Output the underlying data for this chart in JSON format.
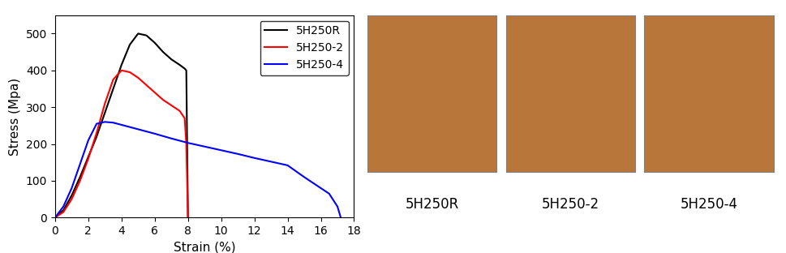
{
  "title": "",
  "xlabel": "Strain (%)",
  "ylabel": "Stress (Mpa)",
  "xlim": [
    0,
    18
  ],
  "ylim": [
    0,
    550
  ],
  "xticks": [
    0,
    2,
    4,
    6,
    8,
    10,
    12,
    14,
    16,
    18
  ],
  "yticks": [
    0,
    100,
    200,
    300,
    400,
    500
  ],
  "legend_labels": [
    "5H250R",
    "5H250-2",
    "5H250-4"
  ],
  "line_colors": [
    "black",
    "red",
    "blue"
  ],
  "image_labels": [
    "5H250R",
    "5H250-2",
    "5H250-4"
  ],
  "label_fontsize": 12,
  "axis_label_fontsize": 11,
  "tick_fontsize": 10,
  "legend_fontsize": 10,
  "photo_color": "#b8763a",
  "curve_black": {
    "x": [
      0,
      0.5,
      1.0,
      1.5,
      2.0,
      2.5,
      3.0,
      3.5,
      4.0,
      4.5,
      5.0,
      5.5,
      6.0,
      6.5,
      7.0,
      7.5,
      7.8,
      7.9,
      8.0
    ],
    "y": [
      0,
      20,
      60,
      110,
      165,
      220,
      285,
      350,
      415,
      470,
      500,
      495,
      475,
      450,
      430,
      415,
      405,
      400,
      0
    ]
  },
  "curve_red": {
    "x": [
      0,
      0.5,
      1.0,
      1.5,
      2.0,
      2.5,
      3.0,
      3.5,
      4.0,
      4.5,
      5.0,
      5.5,
      6.0,
      6.5,
      7.0,
      7.5,
      7.8,
      7.9,
      8.0
    ],
    "y": [
      0,
      15,
      50,
      100,
      160,
      230,
      310,
      375,
      400,
      395,
      380,
      360,
      340,
      320,
      305,
      290,
      270,
      200,
      0
    ]
  },
  "curve_blue": {
    "x": [
      0,
      0.5,
      1.0,
      1.5,
      2.0,
      2.5,
      3.0,
      3.5,
      4.0,
      5.0,
      6.0,
      7.0,
      8.0,
      9.0,
      10.0,
      11.0,
      12.0,
      13.0,
      14.0,
      15.0,
      16.0,
      16.5,
      17.0,
      17.2
    ],
    "y": [
      0,
      30,
      80,
      145,
      210,
      255,
      260,
      258,
      252,
      240,
      228,
      215,
      203,
      193,
      183,
      173,
      162,
      152,
      142,
      110,
      80,
      65,
      30,
      0
    ]
  }
}
